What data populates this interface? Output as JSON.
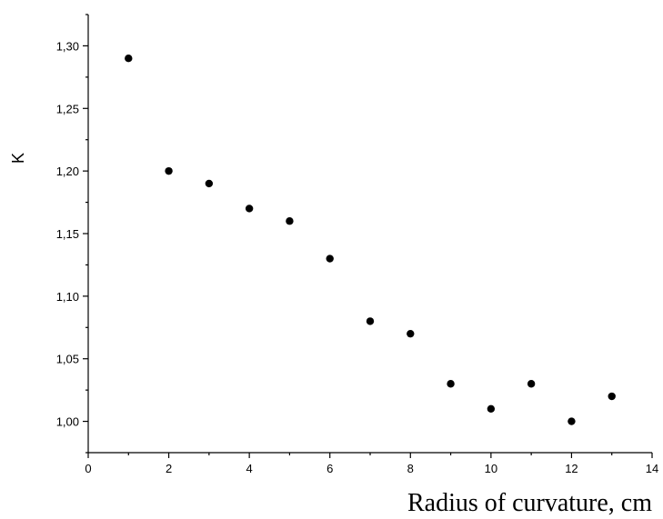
{
  "chart_data": {
    "type": "scatter",
    "title": "",
    "xlabel": "Radius of curvature, cm",
    "ylabel": "K",
    "xlim": [
      0,
      14
    ],
    "ylim": [
      0.975,
      1.325
    ],
    "x_ticks": [
      0,
      2,
      4,
      6,
      8,
      10,
      12,
      14
    ],
    "x_tick_labels": [
      "0",
      "2",
      "4",
      "6",
      "8",
      "10",
      "12",
      "14"
    ],
    "y_ticks": [
      1.0,
      1.05,
      1.1,
      1.15,
      1.2,
      1.25,
      1.3
    ],
    "y_tick_labels": [
      "1,00",
      "1,05",
      "1,10",
      "1,15",
      "1,20",
      "1,25",
      "1,30"
    ],
    "grid": false,
    "legend": "none",
    "marker_color": "#000000",
    "series": [
      {
        "x": [
          1,
          2,
          3,
          4,
          5,
          6,
          7,
          8,
          9,
          10,
          11,
          12,
          13
        ],
        "y": [
          1.29,
          1.2,
          1.19,
          1.17,
          1.16,
          1.13,
          1.08,
          1.07,
          1.03,
          1.01,
          1.03,
          1.0,
          1.02
        ]
      }
    ]
  }
}
